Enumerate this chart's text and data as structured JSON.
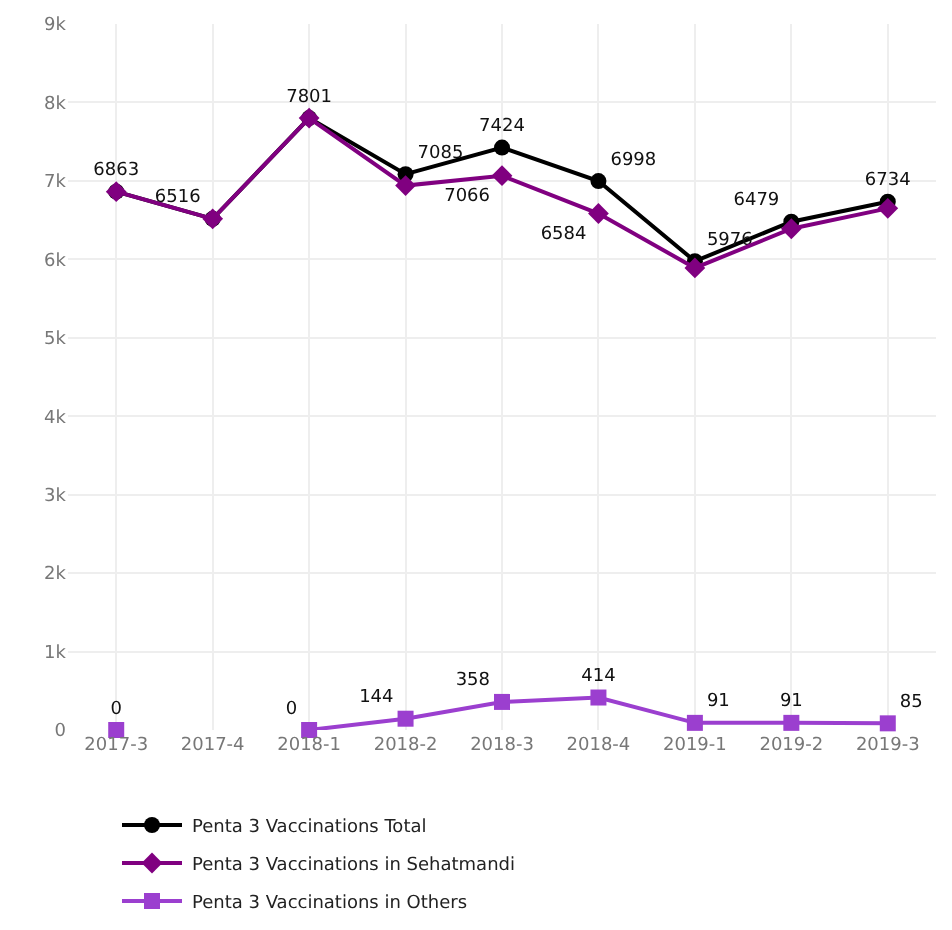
{
  "chart_data": {
    "type": "line",
    "categories": [
      "2017-3",
      "2017-4",
      "2018-1",
      "2018-2",
      "2018-3",
      "2018-4",
      "2019-1",
      "2019-2",
      "2019-3"
    ],
    "series": [
      {
        "name": "Penta 3 Vaccinations Total",
        "color": "#000000",
        "marker": "circle",
        "values": [
          6863,
          6516,
          7801,
          7085,
          7424,
          6998,
          5976,
          6479,
          6734
        ],
        "value_labels": [
          "6863",
          "6516",
          "7801",
          "7085",
          "7424",
          "6998",
          "5976",
          "6479",
          "6734"
        ]
      },
      {
        "name": "Penta 3 Vaccinations in Sehatmandi",
        "color": "#800080",
        "marker": "diamond",
        "values": [
          6863,
          6516,
          7801,
          6940,
          7066,
          6584,
          5890,
          6390,
          6650
        ],
        "value_labels": [
          null,
          null,
          null,
          null,
          "7066",
          "6584",
          null,
          null,
          null
        ]
      },
      {
        "name": "Penta 3 Vaccinations in Others",
        "color": "#9b3fcf",
        "marker": "square",
        "values": [
          0,
          null,
          0,
          144,
          358,
          414,
          91,
          91,
          85
        ],
        "value_labels": [
          "0",
          null,
          "0",
          "144",
          "358",
          "414",
          "91",
          "91",
          "85"
        ]
      }
    ],
    "ylim": [
      0,
      9000
    ],
    "yticks": [
      {
        "value": 0,
        "label": "0"
      },
      {
        "value": 1000,
        "label": "1k"
      },
      {
        "value": 2000,
        "label": "2k"
      },
      {
        "value": 3000,
        "label": "3k"
      },
      {
        "value": 4000,
        "label": "4k"
      },
      {
        "value": 5000,
        "label": "5k"
      },
      {
        "value": 6000,
        "label": "6k"
      },
      {
        "value": 7000,
        "label": "7k"
      },
      {
        "value": 8000,
        "label": "8k"
      },
      {
        "value": 9000,
        "label": "9k"
      }
    ],
    "grid": true,
    "legend": "bottom"
  }
}
